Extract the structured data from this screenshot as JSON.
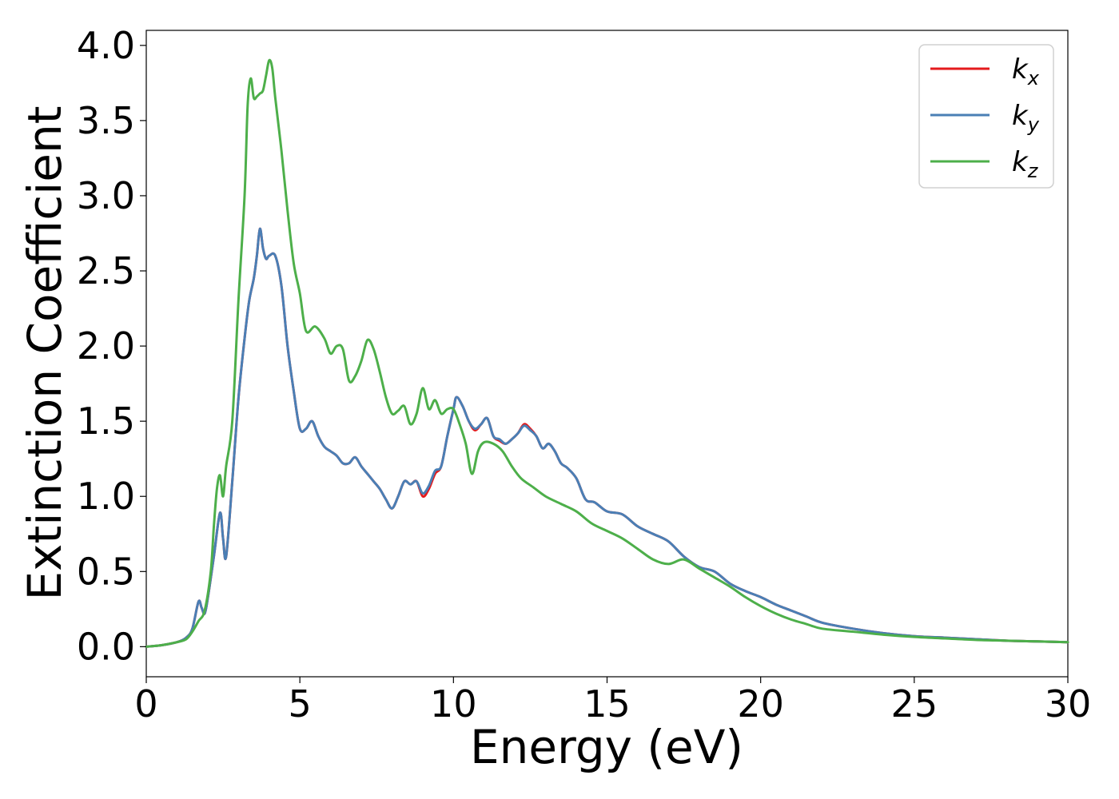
{
  "chart_data": {
    "type": "line",
    "xlabel": "Energy (eV)",
    "ylabel": "Extinction Coefficient",
    "xlim": [
      0,
      30
    ],
    "ylim": [
      -0.2,
      4.1
    ],
    "xticks": [
      0,
      5,
      10,
      15,
      20,
      25,
      30
    ],
    "yticks": [
      0.0,
      0.5,
      1.0,
      1.5,
      2.0,
      2.5,
      3.0,
      3.5,
      4.0
    ],
    "ytick_labels": [
      "0.0",
      "0.5",
      "1.0",
      "1.5",
      "2.0",
      "2.5",
      "3.0",
      "3.5",
      "4.0"
    ],
    "grid": false,
    "legend_position": "top-right",
    "series": [
      {
        "name": "k_x",
        "label_base": "k",
        "label_sub": "x",
        "color": "#e41a1c",
        "x": [
          0,
          0.5,
          1.0,
          1.3,
          1.5,
          1.7,
          1.8,
          1.9,
          2.0,
          2.2,
          2.4,
          2.5,
          2.6,
          2.8,
          3.0,
          3.2,
          3.35,
          3.5,
          3.6,
          3.7,
          3.8,
          3.9,
          4.0,
          4.2,
          4.4,
          4.6,
          4.8,
          5.0,
          5.2,
          5.4,
          5.6,
          5.8,
          6.0,
          6.2,
          6.4,
          6.6,
          6.8,
          7.0,
          7.2,
          7.4,
          7.6,
          7.8,
          8.0,
          8.2,
          8.4,
          8.6,
          8.8,
          9.0,
          9.2,
          9.4,
          9.6,
          9.8,
          10.0,
          10.1,
          10.3,
          10.5,
          10.7,
          10.9,
          11.1,
          11.3,
          11.5,
          11.7,
          11.9,
          12.1,
          12.3,
          12.5,
          12.7,
          12.9,
          13.1,
          13.3,
          13.5,
          13.7,
          14.0,
          14.3,
          14.6,
          15.0,
          15.5,
          16.0,
          16.5,
          17.0,
          17.5,
          18.0,
          18.5,
          19.0,
          19.5,
          20.0,
          20.5,
          21.0,
          21.5,
          22.0,
          23.0,
          24.0,
          25.0,
          26.0,
          27.0,
          28.0,
          29.0,
          30.0
        ],
        "y": [
          0.0,
          0.01,
          0.03,
          0.06,
          0.12,
          0.3,
          0.26,
          0.22,
          0.32,
          0.6,
          0.89,
          0.72,
          0.6,
          1.1,
          1.65,
          2.05,
          2.3,
          2.45,
          2.6,
          2.78,
          2.65,
          2.58,
          2.6,
          2.6,
          2.4,
          2.0,
          1.7,
          1.45,
          1.45,
          1.5,
          1.4,
          1.33,
          1.3,
          1.27,
          1.22,
          1.22,
          1.26,
          1.2,
          1.15,
          1.1,
          1.05,
          0.98,
          0.92,
          1.0,
          1.1,
          1.08,
          1.1,
          1.0,
          1.05,
          1.15,
          1.2,
          1.4,
          1.58,
          1.66,
          1.6,
          1.5,
          1.44,
          1.48,
          1.52,
          1.4,
          1.37,
          1.35,
          1.38,
          1.42,
          1.48,
          1.45,
          1.4,
          1.32,
          1.35,
          1.3,
          1.22,
          1.19,
          1.12,
          0.98,
          0.96,
          0.9,
          0.88,
          0.8,
          0.75,
          0.7,
          0.6,
          0.53,
          0.5,
          0.42,
          0.37,
          0.33,
          0.28,
          0.24,
          0.2,
          0.16,
          0.12,
          0.09,
          0.07,
          0.06,
          0.05,
          0.04,
          0.035,
          0.03
        ]
      },
      {
        "name": "k_y",
        "label_base": "k",
        "label_sub": "y",
        "color": "#4a7fb5",
        "x": [
          0,
          0.5,
          1.0,
          1.3,
          1.5,
          1.7,
          1.8,
          1.9,
          2.0,
          2.2,
          2.4,
          2.5,
          2.6,
          2.8,
          3.0,
          3.2,
          3.35,
          3.5,
          3.6,
          3.7,
          3.8,
          3.9,
          4.0,
          4.2,
          4.4,
          4.6,
          4.8,
          5.0,
          5.2,
          5.4,
          5.6,
          5.8,
          6.0,
          6.2,
          6.4,
          6.6,
          6.8,
          7.0,
          7.2,
          7.4,
          7.6,
          7.8,
          8.0,
          8.2,
          8.4,
          8.6,
          8.8,
          9.0,
          9.2,
          9.4,
          9.6,
          9.8,
          10.0,
          10.1,
          10.3,
          10.5,
          10.7,
          10.9,
          11.1,
          11.3,
          11.5,
          11.7,
          11.9,
          12.1,
          12.3,
          12.5,
          12.7,
          12.9,
          13.1,
          13.3,
          13.5,
          13.7,
          14.0,
          14.3,
          14.6,
          15.0,
          15.5,
          16.0,
          16.5,
          17.0,
          17.5,
          18.0,
          18.5,
          19.0,
          19.5,
          20.0,
          20.5,
          21.0,
          21.5,
          22.0,
          23.0,
          24.0,
          25.0,
          26.0,
          27.0,
          28.0,
          29.0,
          30.0
        ],
        "y": [
          0.0,
          0.01,
          0.03,
          0.06,
          0.12,
          0.3,
          0.26,
          0.22,
          0.32,
          0.6,
          0.89,
          0.72,
          0.6,
          1.1,
          1.65,
          2.05,
          2.3,
          2.45,
          2.6,
          2.78,
          2.65,
          2.58,
          2.6,
          2.6,
          2.4,
          2.0,
          1.7,
          1.45,
          1.45,
          1.5,
          1.4,
          1.33,
          1.3,
          1.27,
          1.22,
          1.22,
          1.26,
          1.2,
          1.15,
          1.1,
          1.05,
          0.98,
          0.92,
          1.0,
          1.1,
          1.08,
          1.1,
          1.02,
          1.07,
          1.17,
          1.2,
          1.4,
          1.58,
          1.66,
          1.6,
          1.5,
          1.45,
          1.48,
          1.52,
          1.4,
          1.38,
          1.35,
          1.38,
          1.42,
          1.47,
          1.44,
          1.4,
          1.32,
          1.35,
          1.3,
          1.22,
          1.19,
          1.12,
          0.98,
          0.96,
          0.9,
          0.88,
          0.8,
          0.75,
          0.7,
          0.6,
          0.53,
          0.5,
          0.42,
          0.37,
          0.33,
          0.28,
          0.24,
          0.2,
          0.16,
          0.12,
          0.09,
          0.07,
          0.06,
          0.05,
          0.04,
          0.035,
          0.03
        ]
      },
      {
        "name": "k_z",
        "label_base": "k",
        "label_sub": "z",
        "color": "#4daf4a",
        "x": [
          0,
          0.5,
          1.0,
          1.3,
          1.5,
          1.7,
          1.9,
          2.1,
          2.2,
          2.3,
          2.4,
          2.5,
          2.6,
          2.8,
          3.0,
          3.2,
          3.3,
          3.4,
          3.5,
          3.6,
          3.7,
          3.8,
          3.9,
          4.0,
          4.1,
          4.2,
          4.4,
          4.6,
          4.8,
          5.0,
          5.2,
          5.5,
          5.8,
          6.0,
          6.2,
          6.4,
          6.6,
          6.8,
          7.0,
          7.2,
          7.4,
          7.6,
          7.8,
          8.0,
          8.2,
          8.4,
          8.6,
          8.8,
          9.0,
          9.2,
          9.4,
          9.6,
          9.8,
          10.0,
          10.2,
          10.4,
          10.6,
          10.8,
          11.0,
          11.3,
          11.6,
          11.9,
          12.2,
          12.6,
          13.0,
          13.5,
          14.0,
          14.5,
          15.0,
          15.5,
          16.0,
          16.5,
          17.0,
          17.5,
          18.0,
          18.5,
          19.0,
          19.5,
          20.0,
          20.5,
          21.0,
          21.5,
          22.0,
          23.0,
          24.0,
          25.0,
          26.0,
          27.0,
          28.0,
          29.0,
          30.0
        ],
        "y": [
          0.0,
          0.01,
          0.03,
          0.05,
          0.1,
          0.17,
          0.24,
          0.5,
          0.8,
          1.05,
          1.14,
          1.0,
          1.2,
          1.5,
          2.3,
          3.0,
          3.6,
          3.78,
          3.65,
          3.66,
          3.68,
          3.7,
          3.8,
          3.9,
          3.85,
          3.65,
          3.3,
          2.9,
          2.55,
          2.35,
          2.1,
          2.13,
          2.05,
          1.95,
          2.0,
          1.98,
          1.77,
          1.8,
          1.9,
          2.04,
          1.98,
          1.83,
          1.66,
          1.55,
          1.57,
          1.6,
          1.48,
          1.55,
          1.72,
          1.58,
          1.64,
          1.55,
          1.58,
          1.58,
          1.48,
          1.35,
          1.15,
          1.3,
          1.36,
          1.35,
          1.3,
          1.2,
          1.12,
          1.06,
          1.0,
          0.95,
          0.9,
          0.82,
          0.77,
          0.72,
          0.65,
          0.58,
          0.55,
          0.58,
          0.52,
          0.46,
          0.4,
          0.33,
          0.27,
          0.22,
          0.18,
          0.15,
          0.12,
          0.1,
          0.08,
          0.065,
          0.055,
          0.045,
          0.04,
          0.035,
          0.03
        ]
      }
    ]
  }
}
